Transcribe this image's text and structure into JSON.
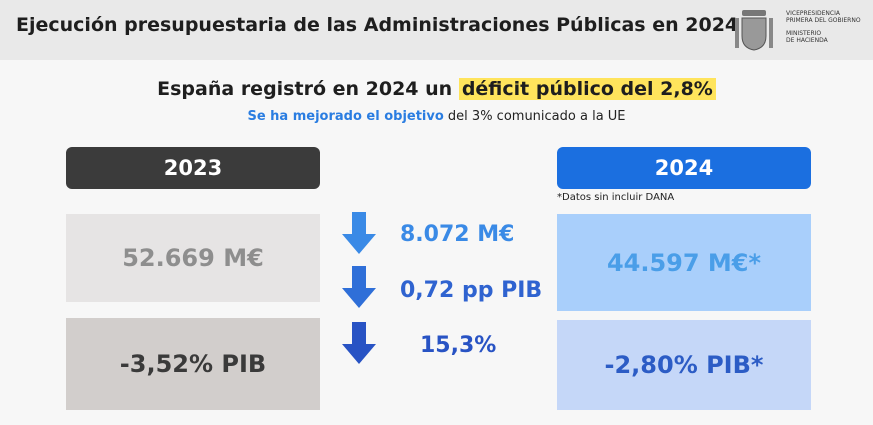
{
  "header": {
    "title": "Ejecución presupuestaria de las Administraciones Públicas en 2024",
    "logo_lines": [
      "VICEPRESIDENCIA",
      "PRIMERA DEL GOBIERNO",
      "MINISTERIO",
      "DE HACIENDA"
    ]
  },
  "headline": {
    "text": "España registró en 2024 un ",
    "highlight": "déficit público del 2,8%"
  },
  "subline": {
    "bold": "Se ha mejorado el objetivo",
    "text": " del 3% comunicado a la UE"
  },
  "left": {
    "year": "2023",
    "amount": "52.669 M€",
    "pib": "-3,52% PIB"
  },
  "changes": [
    "8.072 M€",
    "0,72 pp PIB",
    "15,3%"
  ],
  "right": {
    "year": "2024",
    "note": "*Datos sin incluir DANA",
    "amount": "44.597 M€*",
    "pib": "-2,80% PIB*"
  }
}
